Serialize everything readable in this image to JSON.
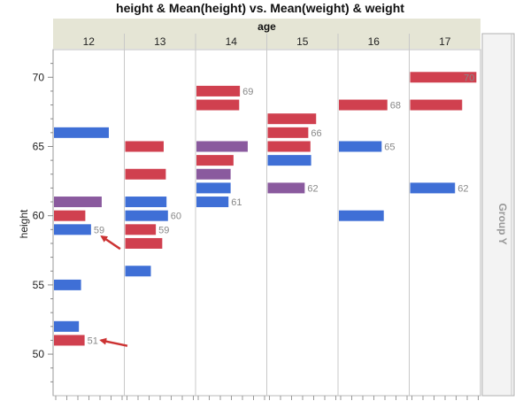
{
  "chart_data": {
    "type": "bar",
    "orientation": "horizontal",
    "title": "height & Mean(height) vs. Mean(weight) & weight",
    "group_x_label": "age",
    "group_y_label": "Group Y",
    "ylabel": "height",
    "xlabel": "",
    "ylim": [
      47,
      72
    ],
    "yticks": [
      50,
      55,
      60,
      65,
      70
    ],
    "grid": false,
    "panels": [
      "12",
      "13",
      "14",
      "15",
      "16",
      "17"
    ],
    "colors": {
      "female": "#d0404f",
      "male": "#3f6fd6",
      "mixed": "#8a5a9e",
      "header": "#e5e5d5",
      "arrow": "#cc3333"
    },
    "bars": [
      {
        "age": "12",
        "height": 51,
        "fill": 0.43,
        "color": "female",
        "label": "51"
      },
      {
        "age": "12",
        "height": 52,
        "fill": 0.35,
        "color": "male",
        "label": ""
      },
      {
        "age": "12",
        "height": 55,
        "fill": 0.38,
        "color": "male",
        "label": ""
      },
      {
        "age": "12",
        "height": 59,
        "fill": 0.52,
        "color": "male",
        "label": "59"
      },
      {
        "age": "12",
        "height": 60,
        "fill": 0.44,
        "color": "female",
        "label": ""
      },
      {
        "age": "12",
        "height": 61,
        "fill": 0.67,
        "color": "mixed",
        "label": ""
      },
      {
        "age": "12",
        "height": 66,
        "fill": 0.77,
        "color": "male",
        "label": ""
      },
      {
        "age": "13",
        "height": 56,
        "fill": 0.36,
        "color": "male",
        "label": ""
      },
      {
        "age": "13",
        "height": 58,
        "fill": 0.52,
        "color": "female",
        "label": ""
      },
      {
        "age": "13",
        "height": 59,
        "fill": 0.43,
        "color": "female",
        "label": "59"
      },
      {
        "age": "13",
        "height": 60,
        "fill": 0.6,
        "color": "male",
        "label": "60"
      },
      {
        "age": "13",
        "height": 61,
        "fill": 0.58,
        "color": "male",
        "label": ""
      },
      {
        "age": "13",
        "height": 63,
        "fill": 0.57,
        "color": "female",
        "label": ""
      },
      {
        "age": "13",
        "height": 65,
        "fill": 0.54,
        "color": "female",
        "label": ""
      },
      {
        "age": "14",
        "height": 61,
        "fill": 0.45,
        "color": "male",
        "label": "61"
      },
      {
        "age": "14",
        "height": 62,
        "fill": 0.48,
        "color": "male",
        "label": ""
      },
      {
        "age": "14",
        "height": 63,
        "fill": 0.48,
        "color": "mixed",
        "label": ""
      },
      {
        "age": "14",
        "height": 64,
        "fill": 0.52,
        "color": "female",
        "label": ""
      },
      {
        "age": "14",
        "height": 65,
        "fill": 0.72,
        "color": "mixed",
        "label": ""
      },
      {
        "age": "14",
        "height": 68,
        "fill": 0.6,
        "color": "female",
        "label": ""
      },
      {
        "age": "14",
        "height": 69,
        "fill": 0.61,
        "color": "female",
        "label": "69"
      },
      {
        "age": "15",
        "height": 62,
        "fill": 0.52,
        "color": "mixed",
        "label": "62"
      },
      {
        "age": "15",
        "height": 64,
        "fill": 0.61,
        "color": "male",
        "label": ""
      },
      {
        "age": "15",
        "height": 65,
        "fill": 0.6,
        "color": "female",
        "label": ""
      },
      {
        "age": "15",
        "height": 66,
        "fill": 0.57,
        "color": "female",
        "label": "66"
      },
      {
        "age": "15",
        "height": 67,
        "fill": 0.68,
        "color": "female",
        "label": ""
      },
      {
        "age": "16",
        "height": 60,
        "fill": 0.63,
        "color": "male",
        "label": ""
      },
      {
        "age": "16",
        "height": 65,
        "fill": 0.6,
        "color": "male",
        "label": "65"
      },
      {
        "age": "16",
        "height": 68,
        "fill": 0.68,
        "color": "female",
        "label": "68"
      },
      {
        "age": "17",
        "height": 62,
        "fill": 0.63,
        "color": "male",
        "label": "62"
      },
      {
        "age": "17",
        "height": 68,
        "fill": 0.73,
        "color": "female",
        "label": ""
      },
      {
        "age": "17",
        "height": 70,
        "fill": 0.93,
        "color": "female",
        "label": "70"
      }
    ],
    "arrows": [
      {
        "age": "12",
        "from_height": 57.6,
        "to_height": 58.5,
        "from_fill": 0.93,
        "to_fill": 0.67
      },
      {
        "age": "12",
        "from_height": 50.6,
        "to_height": 51,
        "from_fill": 1.03,
        "to_fill": 0.66
      }
    ]
  }
}
